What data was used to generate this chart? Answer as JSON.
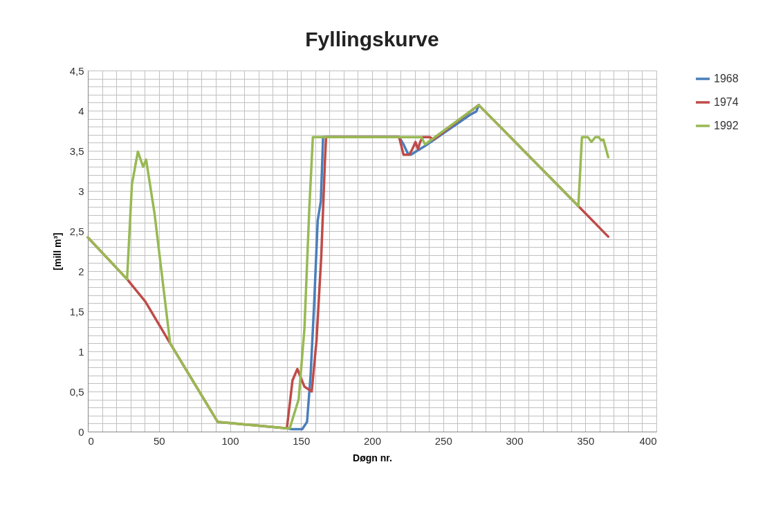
{
  "chart_data": {
    "type": "line",
    "title": "Fyllingskurve",
    "xlabel": "Døgn nr.",
    "ylabel": "[mill m³]",
    "xlim": [
      0,
      400
    ],
    "ylim": [
      0,
      4.5
    ],
    "xticks": [
      0,
      {
        "value": 10,
        "label": null
      },
      {
        "value": 20,
        "label": null
      },
      {
        "value": 30,
        "label": null
      },
      {
        "value": 40,
        "label": null
      },
      50,
      {
        "value": 60,
        "label": null
      },
      {
        "value": 70,
        "label": null
      },
      {
        "value": 80,
        "label": null
      },
      {
        "value": 90,
        "label": null
      },
      100,
      {
        "value": 110,
        "label": null
      },
      {
        "value": 120,
        "label": null
      },
      {
        "value": 130,
        "label": null
      },
      {
        "value": 140,
        "label": null
      },
      150,
      {
        "value": 160,
        "label": null
      },
      {
        "value": 170,
        "label": null
      },
      {
        "value": 180,
        "label": null
      },
      {
        "value": 190,
        "label": null
      },
      200,
      {
        "value": 210,
        "label": null
      },
      {
        "value": 220,
        "label": null
      },
      {
        "value": 230,
        "label": null
      },
      {
        "value": 240,
        "label": null
      },
      250,
      {
        "value": 260,
        "label": null
      },
      {
        "value": 270,
        "label": null
      },
      {
        "value": 280,
        "label": null
      },
      {
        "value": 290,
        "label": null
      },
      300,
      {
        "value": 310,
        "label": null
      },
      {
        "value": 320,
        "label": null
      },
      {
        "value": 330,
        "label": null
      },
      {
        "value": 340,
        "label": null
      },
      350,
      {
        "value": 360,
        "label": null
      },
      {
        "value": 370,
        "label": null
      },
      {
        "value": 380,
        "label": null
      },
      {
        "value": 390,
        "label": null
      },
      400
    ],
    "yticks": [
      0,
      {
        "value": 0.1,
        "label": null
      },
      {
        "value": 0.2,
        "label": null
      },
      {
        "value": 0.3,
        "label": null
      },
      {
        "value": 0.4,
        "label": null
      },
      {
        "value": 0.5,
        "label": "0,5"
      },
      {
        "value": 0.6,
        "label": null
      },
      {
        "value": 0.7,
        "label": null
      },
      {
        "value": 0.8,
        "label": null
      },
      {
        "value": 0.9,
        "label": null
      },
      1,
      {
        "value": 1.1,
        "label": null
      },
      {
        "value": 1.2,
        "label": null
      },
      {
        "value": 1.3,
        "label": null
      },
      {
        "value": 1.4,
        "label": null
      },
      {
        "value": 1.5,
        "label": "1,5"
      },
      {
        "value": 1.6,
        "label": null
      },
      {
        "value": 1.7,
        "label": null
      },
      {
        "value": 1.8,
        "label": null
      },
      {
        "value": 1.9,
        "label": null
      },
      2,
      {
        "value": 2.1,
        "label": null
      },
      {
        "value": 2.2,
        "label": null
      },
      {
        "value": 2.3,
        "label": null
      },
      {
        "value": 2.4,
        "label": null
      },
      {
        "value": 2.5,
        "label": "2,5"
      },
      {
        "value": 2.6,
        "label": null
      },
      {
        "value": 2.7,
        "label": null
      },
      {
        "value": 2.8,
        "label": null
      },
      {
        "value": 2.9,
        "label": null
      },
      3,
      {
        "value": 3.1,
        "label": null
      },
      {
        "value": 3.2,
        "label": null
      },
      {
        "value": 3.3,
        "label": null
      },
      {
        "value": 3.4,
        "label": null
      },
      {
        "value": 3.5,
        "label": "3,5"
      },
      {
        "value": 3.6,
        "label": null
      },
      {
        "value": 3.7,
        "label": null
      },
      {
        "value": 3.8,
        "label": null
      },
      {
        "value": 3.9,
        "label": null
      },
      4,
      {
        "value": 4.1,
        "label": null
      },
      {
        "value": 4.2,
        "label": null
      },
      {
        "value": 4.3,
        "label": null
      },
      {
        "value": 4.4,
        "label": null
      },
      {
        "value": 4.5,
        "label": "4,5"
      }
    ],
    "grid": true,
    "legend": "right",
    "series": [
      {
        "name": "1968",
        "color": "#4a7ebb",
        "x": [
          140,
          143.3,
          150.8,
          154.2,
          156.7,
          159.2,
          161.7,
          163.9,
          165.5,
          219,
          222.1,
          225,
          227.2,
          237.2,
          269.1,
          273.3,
          275
        ],
        "values": [
          0.04,
          0.03,
          0.03,
          0.12,
          0.7,
          1.59,
          2.63,
          2.87,
          3.67,
          3.67,
          3.58,
          3.47,
          3.45,
          3.56,
          3.95,
          3.99,
          4.07
        ]
      },
      {
        "name": "1974",
        "color": "#be4b48",
        "x": [
          0,
          27.6,
          40.5,
          57.9,
          91.4,
          140,
          144,
          147.4,
          152.4,
          157.5,
          160.9,
          164.2,
          166.8,
          167.6,
          219,
          222.1,
          226.1,
          228,
          230.5,
          232.2,
          233.8,
          235.5,
          240.6,
          243,
          275,
          297.3,
          345.1,
          366.1
        ],
        "values": [
          2.42,
          1.9,
          1.62,
          1.1,
          0.12,
          0.04,
          0.64,
          0.78,
          0.56,
          0.5,
          1.14,
          2.18,
          3.37,
          3.67,
          3.67,
          3.45,
          3.45,
          3.51,
          3.61,
          3.52,
          3.61,
          3.67,
          3.67,
          3.64,
          4.07,
          3.67,
          2.81,
          2.43
        ]
      },
      {
        "name": "1992",
        "color": "#98b954",
        "x": [
          0,
          27.6,
          31,
          35.2,
          38.9,
          41,
          46.9,
          57.9,
          74.6,
          91.4,
          140,
          142,
          148.3,
          152.4,
          155.8,
          158.3,
          234.7,
          237.2,
          275,
          297.3,
          345.1,
          347.6,
          351.8,
          354.3,
          357,
          359.5,
          361.1,
          362.7,
          366.1
        ],
        "values": [
          2.42,
          1.9,
          3.08,
          3.49,
          3.3,
          3.39,
          2.72,
          1.1,
          0.61,
          0.12,
          0.04,
          0.04,
          0.4,
          1.29,
          2.78,
          3.67,
          3.67,
          3.58,
          4.07,
          3.67,
          2.81,
          3.67,
          3.67,
          3.61,
          3.67,
          3.67,
          3.63,
          3.64,
          3.42
        ]
      }
    ]
  }
}
